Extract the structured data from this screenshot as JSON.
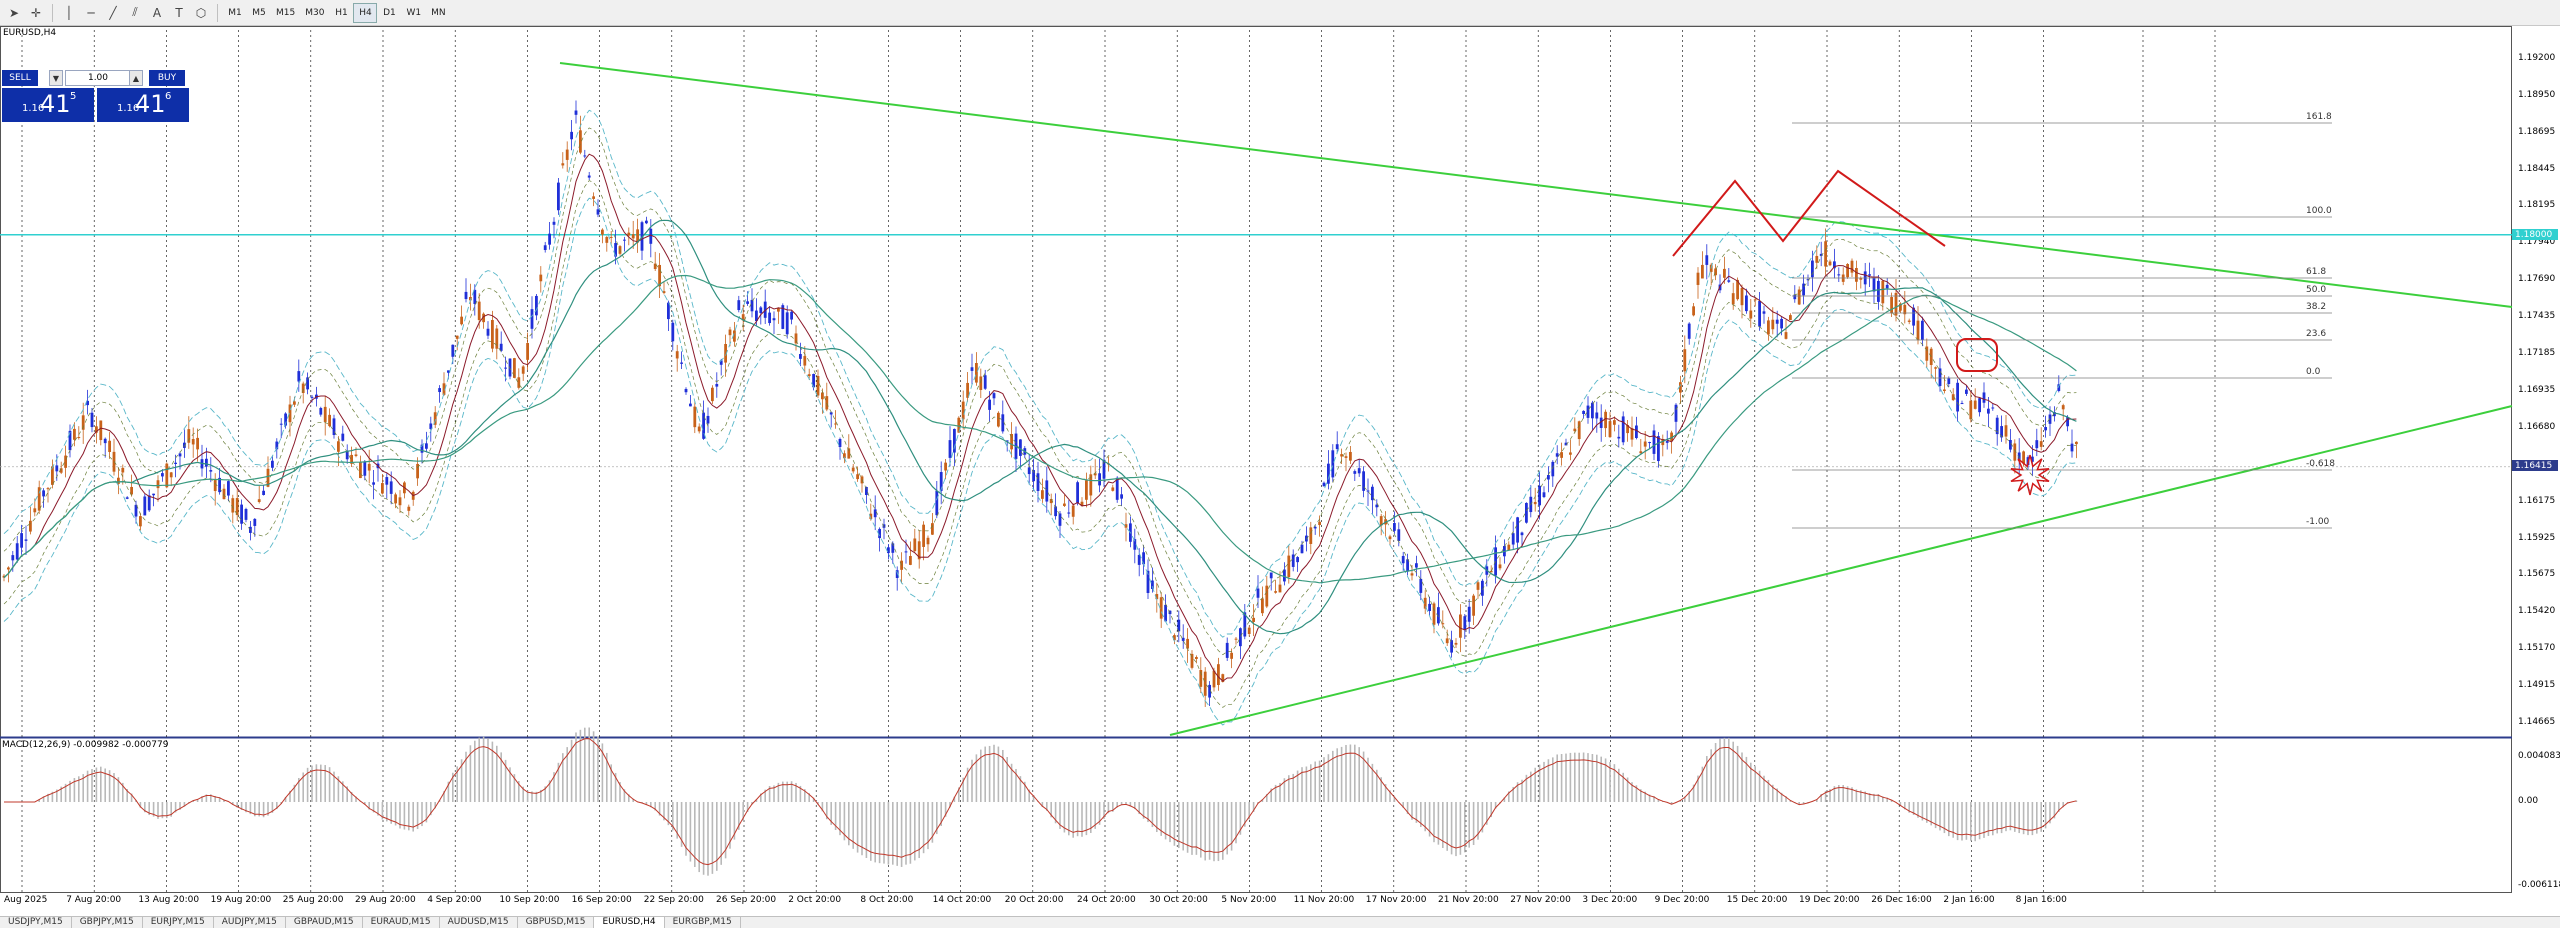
{
  "toolbar": {
    "tools": [
      "cursor-icon",
      "crosshair-icon",
      "vertical-line-icon",
      "horizontal-line-icon",
      "trendline-icon",
      "channel-icon",
      "text-icon",
      "text-label-icon",
      "shapes-icon"
    ],
    "text_tool": "A",
    "label_tool": "T",
    "timeframes": [
      "M1",
      "M5",
      "M15",
      "M30",
      "H1",
      "H4",
      "D1",
      "W1",
      "MN"
    ],
    "active_timeframe": "H4"
  },
  "chart": {
    "symbol_label": "EURUSD,H4",
    "indicator_label": "MACD(12,26,9) -0.009982 -0.000779",
    "one_click": {
      "sell_label": "SELL",
      "buy_label": "BUY",
      "volume": "1.00",
      "spin_down": "▼",
      "spin_up": "▲",
      "bid_prefix": "1.16",
      "bid_big": "41",
      "bid_sup": "5",
      "ask_prefix": "1.16",
      "ask_big": "41",
      "ask_sup": "6"
    },
    "price_axis": [
      "1.19200",
      "1.18950",
      "1.18695",
      "1.18445",
      "1.18195",
      "1.17940",
      "1.17690",
      "1.17435",
      "1.17185",
      "1.16935",
      "1.16680",
      "1.16415",
      "1.16175",
      "1.15925",
      "1.15675",
      "1.15420",
      "1.15170",
      "1.14915",
      "1.14665"
    ],
    "current_price": "1.16415",
    "hline_price": "1.18000",
    "macd_axis": [
      "0.004083",
      "0.00",
      "-0.006118"
    ],
    "fib_levels": [
      "161.8",
      "100.0",
      "61.8",
      "50.0",
      "38.2",
      "23.6",
      "0.0",
      "-0.618",
      "-1.00"
    ],
    "dates": [
      "Aug 2025",
      "7 Aug 20:00",
      "13 Aug 20:00",
      "19 Aug 20:00",
      "25 Aug 20:00",
      "29 Aug 20:00",
      "4 Sep 20:00",
      "10 Sep 20:00",
      "16 Sep 20:00",
      "22 Sep 20:00",
      "26 Sep 20:00",
      "2 Oct 20:00",
      "8 Oct 20:00",
      "14 Oct 20:00",
      "20 Oct 20:00",
      "24 Oct 20:00",
      "30 Oct 20:00",
      "5 Nov 20:00",
      "11 Nov 20:00",
      "17 Nov 20:00",
      "21 Nov 20:00",
      "27 Nov 20:00",
      "3 Dec 20:00",
      "9 Dec 20:00",
      "15 Dec 20:00",
      "19 Dec 20:00",
      "26 Dec 16:00",
      "2 Jan 16:00",
      "8 Jan 16:00"
    ],
    "colors": {
      "bull": "#1f2fd8",
      "bear": "#c8621a",
      "trendline": "#3ccf3c",
      "hline": "#30d0d0",
      "ma_slow": "#2f8f7f",
      "ma_fast": "#8b1a2a",
      "bands": "#59b7c9",
      "macd_hist": "#b9b9b9",
      "macd_signal": "#c0392b",
      "drawing": "#d11a1a"
    }
  },
  "tabs": [
    "USDJPY,M15",
    "GBPJPY,M15",
    "EURJPY,M15",
    "AUDJPY,M15",
    "GBPAUD,M15",
    "EURAUD,M15",
    "AUDUSD,M15",
    "GBPUSD,M15",
    "EURUSD,H4",
    "EURGBP,M15"
  ],
  "active_tab": "EURUSD,H4"
}
